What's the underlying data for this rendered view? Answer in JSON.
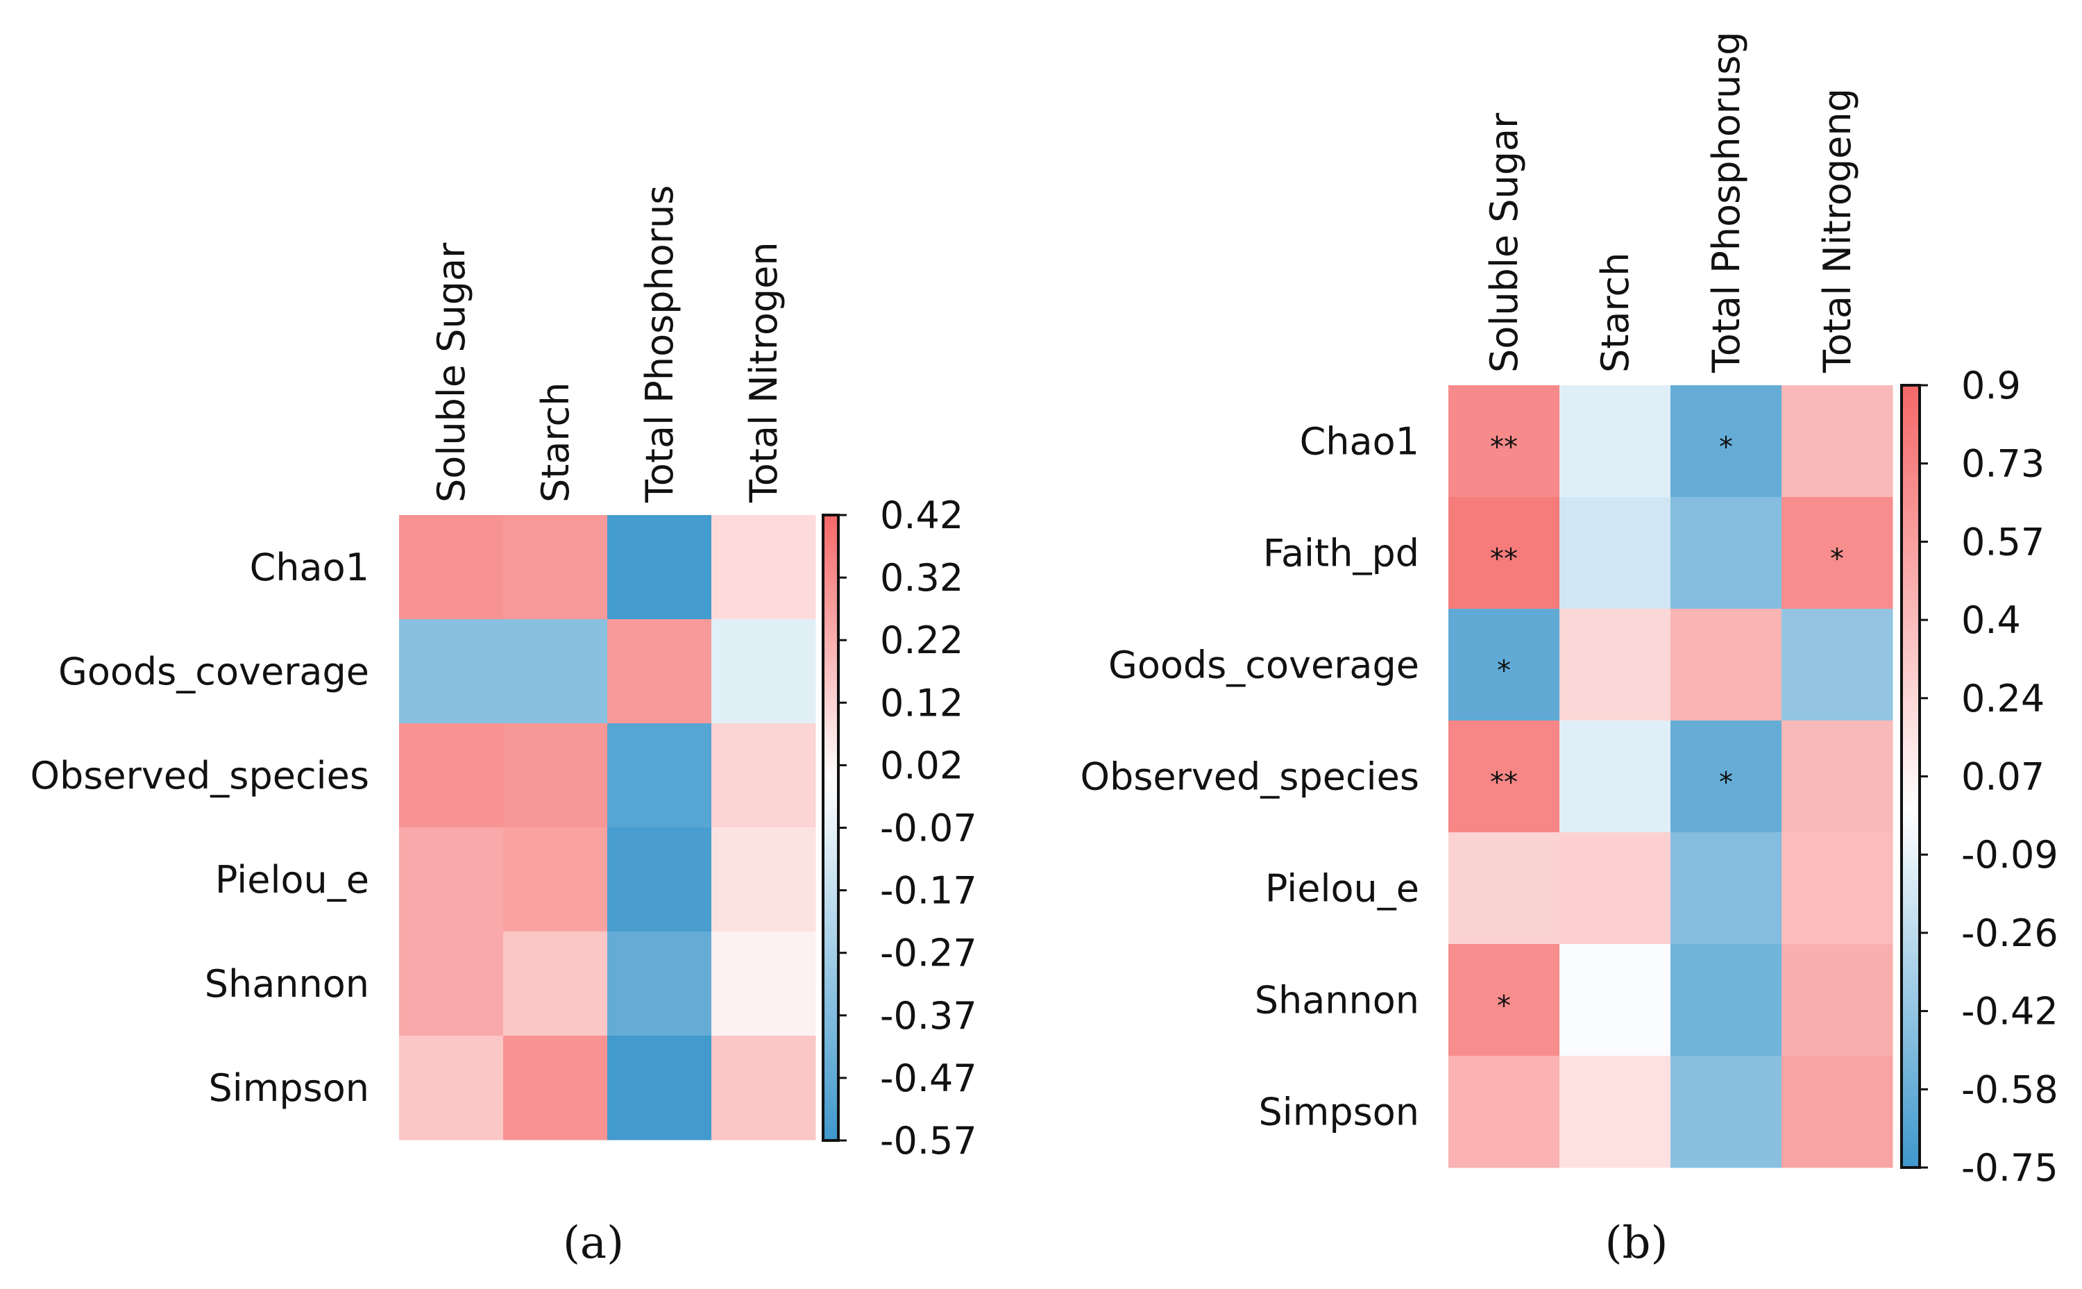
{
  "figure": {
    "panels": [
      "a",
      "b"
    ]
  },
  "chart_data": [
    {
      "id": "a",
      "type": "heatmap",
      "caption": "(a)",
      "columns": [
        "Soluble Sugar",
        "Starch",
        "Total Phosphorus",
        "Total Nitrogen"
      ],
      "rows": [
        "Chao1",
        "Goods_coverage",
        "Observed_species",
        "Pielou_e",
        "Shannon",
        "Simpson"
      ],
      "values": [
        [
          0.3,
          0.28,
          -0.55,
          0.1
        ],
        [
          -0.35,
          -0.35,
          0.28,
          -0.09
        ],
        [
          0.3,
          0.29,
          -0.5,
          0.12
        ],
        [
          0.24,
          0.26,
          -0.54,
          0.08
        ],
        [
          0.24,
          0.16,
          -0.46,
          0.04
        ],
        [
          0.16,
          0.3,
          -0.56,
          0.16
        ]
      ],
      "significance": [
        [
          "",
          "",
          "",
          ""
        ],
        [
          "",
          "",
          "",
          ""
        ],
        [
          "",
          "",
          "",
          ""
        ],
        [
          "",
          "",
          "",
          ""
        ],
        [
          "",
          "",
          "",
          ""
        ],
        [
          "",
          "",
          "",
          ""
        ]
      ],
      "colorbar": {
        "min": -0.57,
        "max": 0.42,
        "ticks": [
          "0.42",
          "0.32",
          "0.22",
          "0.12",
          "0.02",
          "-0.07",
          "-0.17",
          "-0.27",
          "-0.37",
          "-0.47",
          "-0.57"
        ]
      },
      "colors": {
        "low": "#2e8fc8",
        "mid": "#ffffff",
        "high": "#f45b5b"
      }
    },
    {
      "id": "b",
      "type": "heatmap",
      "caption": "(b)",
      "columns": [
        "Soluble Sugar",
        "Starch",
        "Total Phosphorusg",
        "Total Nitrogeng"
      ],
      "rows": [
        "Chao1",
        "Faith_pd",
        "Goods_coverage",
        "Observed_species",
        "Pielou_e",
        "Shannon",
        "Simpson"
      ],
      "values": [
        [
          0.7,
          -0.12,
          -0.6,
          0.42
        ],
        [
          0.78,
          -0.18,
          -0.48,
          0.68
        ],
        [
          -0.62,
          0.24,
          0.45,
          -0.42
        ],
        [
          0.72,
          -0.12,
          -0.6,
          0.42
        ],
        [
          0.26,
          0.28,
          -0.48,
          0.4
        ],
        [
          0.68,
          -0.02,
          -0.55,
          0.48
        ],
        [
          0.46,
          0.18,
          -0.46,
          0.54
        ]
      ],
      "significance": [
        [
          "**",
          "",
          "*",
          ""
        ],
        [
          "**",
          "",
          "",
          "*"
        ],
        [
          "*",
          "",
          "",
          ""
        ],
        [
          "**",
          "",
          "*",
          ""
        ],
        [
          "",
          "",
          "",
          ""
        ],
        [
          "*",
          "",
          "",
          ""
        ],
        [
          "",
          "",
          "",
          ""
        ]
      ],
      "colorbar": {
        "min": -0.75,
        "max": 0.9,
        "ticks": [
          "0.9",
          "0.73",
          "0.57",
          "0.4",
          "0.24",
          "0.07",
          "-0.09",
          "-0.26",
          "-0.42",
          "-0.58",
          "-0.75"
        ]
      },
      "colors": {
        "low": "#2e8fc8",
        "mid": "#ffffff",
        "high": "#f45b5b"
      }
    }
  ]
}
